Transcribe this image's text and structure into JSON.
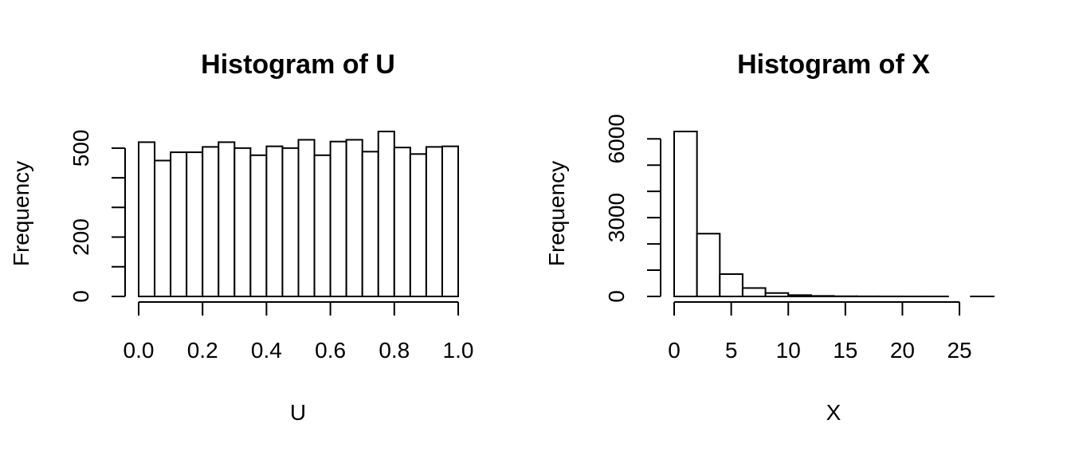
{
  "chart_data": [
    {
      "type": "bar",
      "title": "Histogram of U",
      "xlabel": "U",
      "ylabel": "Frequency",
      "bin_edges": [
        0.0,
        0.05,
        0.1,
        0.15,
        0.2,
        0.25,
        0.3,
        0.35,
        0.4,
        0.45,
        0.5,
        0.55,
        0.6,
        0.65,
        0.7,
        0.75,
        0.8,
        0.85,
        0.9,
        0.95,
        1.0
      ],
      "values": [
        520,
        458,
        486,
        486,
        504,
        520,
        500,
        476,
        506,
        500,
        528,
        476,
        522,
        528,
        488,
        556,
        502,
        480,
        504,
        506
      ],
      "xlim": [
        0.0,
        1.0
      ],
      "ylim": [
        0,
        556
      ],
      "x_ticks": [
        0.0,
        0.2,
        0.4,
        0.6,
        0.8,
        1.0
      ],
      "x_tick_labels": [
        "0.0",
        "0.2",
        "0.4",
        "0.6",
        "0.8",
        "1.0"
      ],
      "y_ticks": [
        0,
        100,
        200,
        300,
        400,
        500
      ],
      "y_tick_labels": [
        "0",
        "",
        "200",
        "",
        "",
        "500"
      ]
    },
    {
      "type": "bar",
      "title": "Histogram of X",
      "xlabel": "X",
      "ylabel": "Frequency",
      "bin_edges": [
        0,
        2,
        4,
        6,
        8,
        10,
        12,
        14,
        16,
        18,
        20,
        22,
        24,
        26,
        28
      ],
      "values": [
        6280,
        2390,
        850,
        320,
        130,
        50,
        20,
        8,
        4,
        2,
        1,
        1,
        0,
        1
      ],
      "xlim": [
        0,
        28
      ],
      "ylim": [
        0,
        6280
      ],
      "x_ticks": [
        0,
        5,
        10,
        15,
        20,
        25
      ],
      "x_tick_labels": [
        "0",
        "5",
        "10",
        "15",
        "20",
        "25"
      ],
      "y_ticks": [
        0,
        1000,
        2000,
        3000,
        4000,
        5000,
        6000
      ],
      "y_tick_labels": [
        "0",
        "",
        "",
        "3000",
        "",
        "",
        "6000"
      ]
    }
  ]
}
